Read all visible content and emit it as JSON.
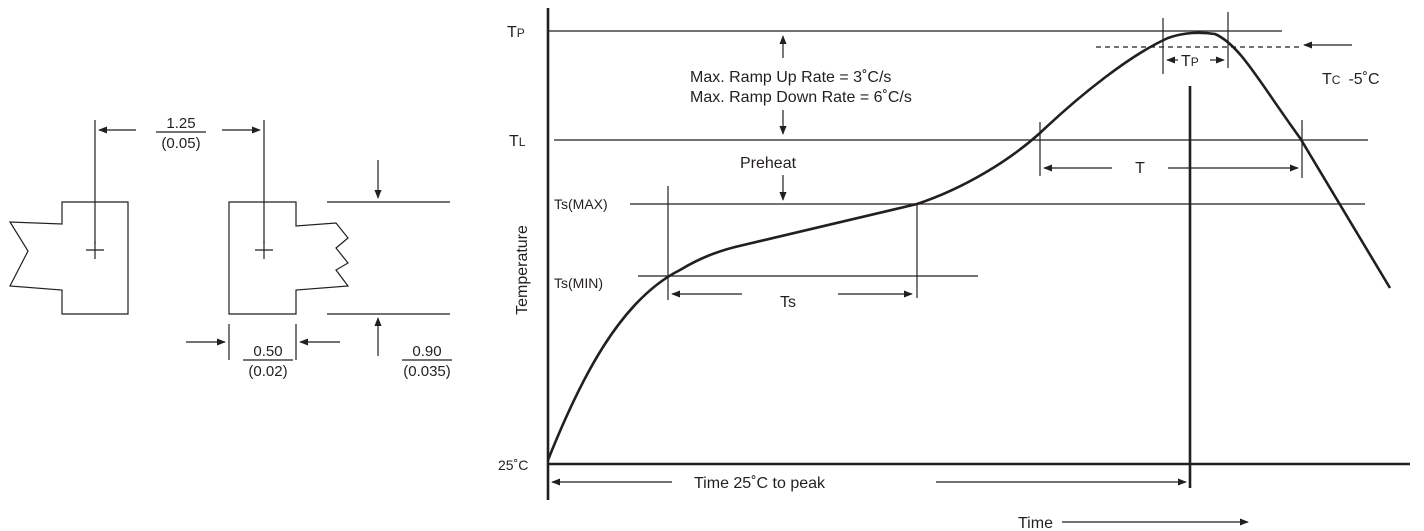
{
  "footprint": {
    "pitch": {
      "mm": "1.25",
      "inch": "(0.05)"
    },
    "pad_width": {
      "mm": "0.50",
      "inch": "(0.02)"
    },
    "pad_height": {
      "mm": "0.90",
      "inch": "(0.035)"
    }
  },
  "profile": {
    "y_axis_label": "Temperature",
    "x_axis_label": "Time",
    "levels": {
      "tp": "Tp",
      "tl": "TL",
      "ts_max": "Ts(MAX)",
      "ts_min": "Ts(MIN)",
      "ambient": "25˚C"
    },
    "annotations": {
      "ramp_up": "Max. Ramp Up Rate = 3˚C/s",
      "ramp_down": "Max. Ramp Down Rate = 6˚C/s",
      "preheat": "Preheat",
      "tc": "Tc  -5˚C",
      "tp_span": "Tp",
      "t_span": "T",
      "ts_span": "Ts",
      "time_to_peak": "Time 25˚C to peak"
    }
  },
  "colors": {
    "ink": "#231f20",
    "background": "#ffffff"
  }
}
